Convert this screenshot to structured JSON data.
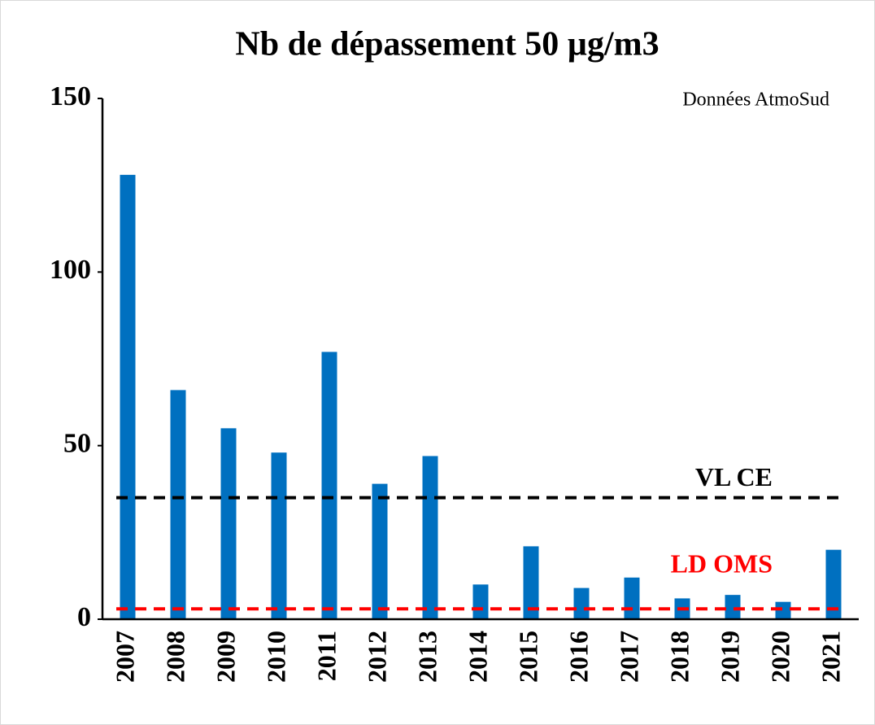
{
  "chart_data": {
    "type": "bar",
    "title": "Nb de dépassement 50 µg/m3",
    "annotation": "Données AtmoSud",
    "categories": [
      "2007",
      "2008",
      "2009",
      "2010",
      "2011",
      "2012",
      "2013",
      "2014",
      "2015",
      "2016",
      "2017",
      "2018",
      "2019",
      "2020",
      "2021"
    ],
    "values": [
      128,
      66,
      55,
      48,
      77,
      39,
      47,
      10,
      21,
      9,
      12,
      6,
      7,
      5,
      20
    ],
    "color": "#0070c0",
    "ylim": [
      0,
      150
    ],
    "yticks": [
      0,
      50,
      100,
      150
    ],
    "grid": false,
    "reference_lines": [
      {
        "name": "VL CE",
        "value": 35,
        "color": "#000000"
      },
      {
        "name": "LD OMS",
        "value": 3,
        "color": "#ff0000"
      }
    ]
  }
}
